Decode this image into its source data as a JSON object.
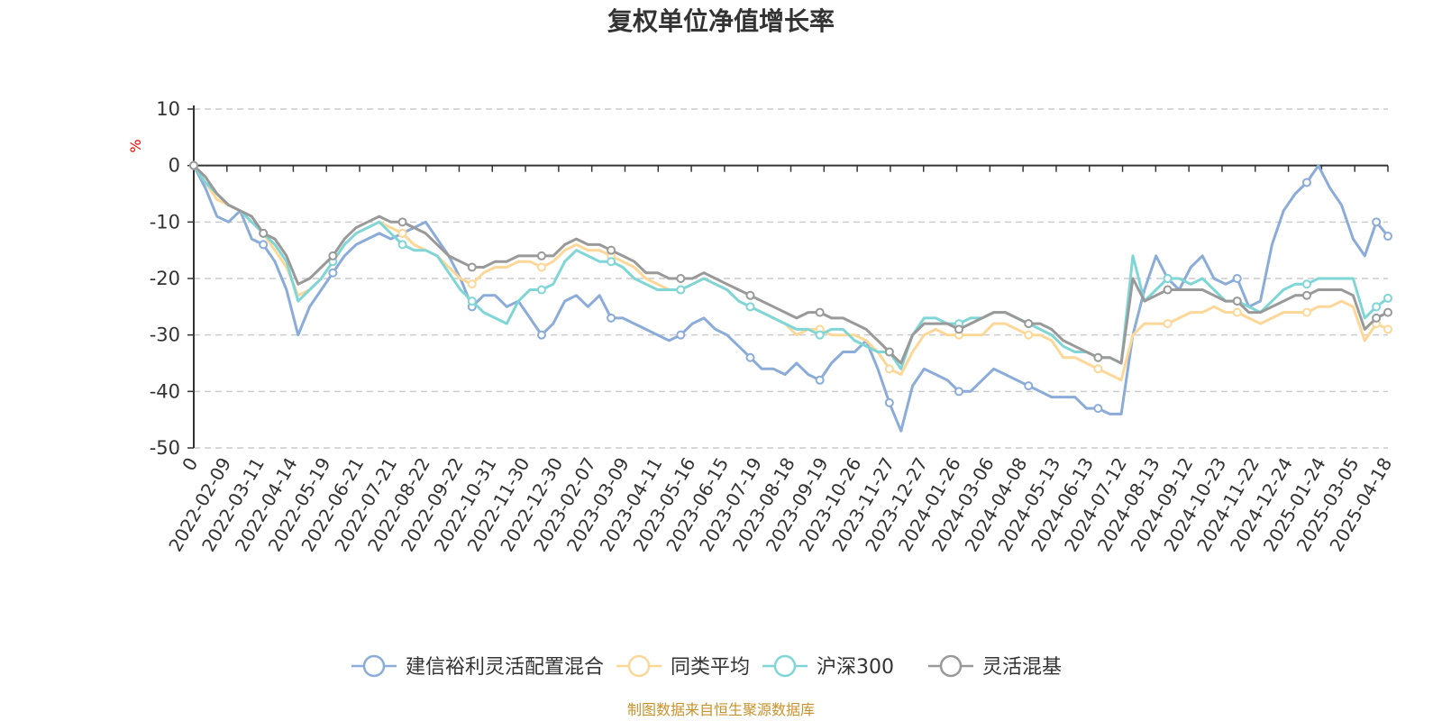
{
  "chart_data": {
    "type": "line",
    "title": "复权单位净值增长率",
    "ylabel": "%",
    "ylim": [
      -50,
      10
    ],
    "yticks": [
      10,
      0,
      -10,
      -20,
      -30,
      -40,
      -50
    ],
    "y_tick_labels": [
      "10",
      "0",
      "-10",
      "-20",
      "-30",
      "-40",
      "-50"
    ],
    "grid": true,
    "legend_position": "bottom-center",
    "x_tick_labels": [
      "0",
      "2022-02-09",
      "2022-03-11",
      "2022-04-14",
      "2022-05-19",
      "2022-06-21",
      "2022-07-21",
      "2022-08-22",
      "2022-09-22",
      "2022-10-31",
      "2022-11-30",
      "2022-12-30",
      "2023-02-07",
      "2023-03-09",
      "2023-04-11",
      "2023-05-16",
      "2023-06-15",
      "2023-07-19",
      "2023-08-18",
      "2023-09-19",
      "2023-10-26",
      "2023-11-27",
      "2023-12-27",
      "2024-01-26",
      "2024-03-06",
      "2024-04-08",
      "2024-05-13",
      "2024-06-13",
      "2024-07-12",
      "2024-08-13",
      "2024-09-12",
      "2024-10-23",
      "2024-11-22",
      "2024-12-24",
      "2025-01-24",
      "2025-03-05",
      "2025-04-18"
    ],
    "series": [
      {
        "name": "建信裕利灵活配置混合",
        "color": "#8babd8",
        "values": [
          0,
          -4,
          -9,
          -10,
          -8,
          -13,
          -14,
          -17,
          -22,
          -30,
          -25,
          -22,
          -19,
          -16,
          -14,
          -13,
          -12,
          -13,
          -12,
          -11,
          -10,
          -13,
          -16,
          -20,
          -25,
          -23,
          -23,
          -25,
          -24,
          -27,
          -30,
          -28,
          -24,
          -23,
          -25,
          -23,
          -27,
          -27,
          -28,
          -29,
          -30,
          -31,
          -30,
          -28,
          -27,
          -29,
          -30,
          -32,
          -34,
          -36,
          -36,
          -37,
          -35,
          -37,
          -38,
          -35,
          -33,
          -33,
          -31,
          -36,
          -42,
          -47,
          -39,
          -36,
          -37,
          -38,
          -40,
          -40,
          -38,
          -36,
          -37,
          -38,
          -39,
          -40,
          -41,
          -41,
          -41,
          -43,
          -43,
          -44,
          -44,
          -30,
          -22,
          -16,
          -20,
          -22,
          -18,
          -16,
          -20,
          -21,
          -20,
          -25,
          -24,
          -14,
          -8,
          -5,
          -3,
          0,
          -4,
          -7,
          -13,
          -16,
          -10,
          -12.5
        ]
      },
      {
        "name": "同类平均",
        "color": "#fdd797",
        "values": [
          0,
          -3,
          -6,
          -7,
          -8,
          -10,
          -12,
          -15,
          -18,
          -23,
          -22,
          -20,
          -17,
          -14,
          -12,
          -11,
          -10,
          -11,
          -12,
          -14,
          -15,
          -16,
          -18,
          -20,
          -21,
          -19,
          -18,
          -18,
          -17,
          -17,
          -18,
          -17,
          -15,
          -14,
          -15,
          -15,
          -16,
          -17,
          -18,
          -20,
          -21,
          -22,
          -22,
          -21,
          -20,
          -21,
          -22,
          -24,
          -25,
          -26,
          -27,
          -28,
          -30,
          -29,
          -29,
          -30,
          -30,
          -30,
          -31,
          -33,
          -36,
          -37,
          -33,
          -30,
          -29,
          -30,
          -30,
          -30,
          -30,
          -28,
          -28,
          -29,
          -30,
          -30,
          -31,
          -34,
          -34,
          -35,
          -36,
          -37,
          -38,
          -30,
          -28,
          -28,
          -28,
          -27,
          -26,
          -26,
          -25,
          -26,
          -26,
          -27,
          -28,
          -27,
          -26,
          -26,
          -26,
          -25,
          -25,
          -24,
          -25,
          -31,
          -28,
          -29
        ]
      },
      {
        "name": "沪深300",
        "color": "#80d6d6",
        "values": [
          0,
          -3,
          -5,
          -7,
          -8,
          -10,
          -12,
          -14,
          -17,
          -24,
          -22,
          -20,
          -17,
          -14,
          -12,
          -11,
          -10,
          -12,
          -14,
          -15,
          -15,
          -16,
          -19,
          -22,
          -24,
          -26,
          -27,
          -28,
          -24,
          -22,
          -22,
          -21,
          -17,
          -15,
          -16,
          -17,
          -17,
          -18,
          -20,
          -21,
          -22,
          -22,
          -22,
          -21,
          -20,
          -21,
          -22,
          -24,
          -25,
          -26,
          -27,
          -28,
          -29,
          -29,
          -30,
          -29,
          -29,
          -31,
          -32,
          -33,
          -33,
          -36,
          -30,
          -27,
          -27,
          -28,
          -28,
          -27,
          -27,
          -26,
          -26,
          -27,
          -28,
          -29,
          -30,
          -32,
          -33,
          -33,
          -34,
          -34,
          -35,
          -16,
          -24,
          -22,
          -20,
          -20,
          -21,
          -20,
          -22,
          -24,
          -24,
          -25,
          -26,
          -24,
          -22,
          -21,
          -21,
          -20,
          -20,
          -20,
          -20,
          -27,
          -25,
          -23.5
        ]
      },
      {
        "name": "灵活混基",
        "color": "#999999",
        "values": [
          0,
          -2,
          -5,
          -7,
          -8,
          -9,
          -12,
          -13,
          -16,
          -21,
          -20,
          -18,
          -16,
          -13,
          -11,
          -10,
          -9,
          -10,
          -10,
          -11,
          -12,
          -14,
          -16,
          -17,
          -18,
          -18,
          -17,
          -17,
          -16,
          -16,
          -16,
          -16,
          -14,
          -13,
          -14,
          -14,
          -15,
          -16,
          -17,
          -19,
          -19,
          -20,
          -20,
          -20,
          -19,
          -20,
          -21,
          -22,
          -23,
          -24,
          -25,
          -26,
          -27,
          -26,
          -26,
          -27,
          -27,
          -28,
          -29,
          -31,
          -33,
          -35,
          -30,
          -28,
          -28,
          -28,
          -29,
          -28,
          -27,
          -26,
          -26,
          -27,
          -28,
          -28,
          -29,
          -31,
          -32,
          -33,
          -34,
          -34,
          -35,
          -20,
          -24,
          -23,
          -22,
          -22,
          -22,
          -22,
          -23,
          -24,
          -24,
          -26,
          -26,
          -25,
          -24,
          -23,
          -23,
          -22,
          -22,
          -22,
          -23,
          -29,
          -27,
          -26
        ]
      }
    ]
  },
  "footer": {
    "source": "制图数据来自恒生聚源数据库",
    "source_color": "#c8922a"
  }
}
